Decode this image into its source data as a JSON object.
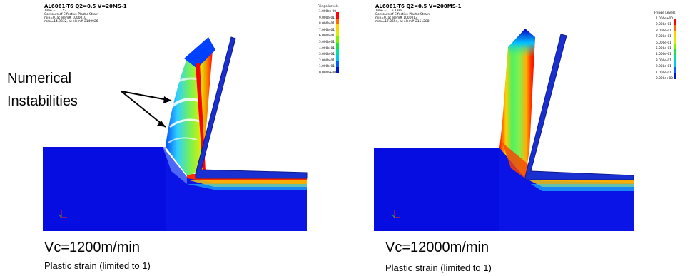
{
  "legend_colors": [
    "#ff0000",
    "#ff6a00",
    "#ffd000",
    "#d8f000",
    "#7ef000",
    "#20e040",
    "#00e0a0",
    "#00c8f0",
    "#0060ff",
    "#0014c8",
    "#0000b4"
  ],
  "left": {
    "title": "AL6061-T6 Q2=0.5 V=20MS-1",
    "info": [
      "Time =       52",
      "Contours of Effective Plastic Strain",
      "min=0, at elem# 1000010",
      "max=14.9332, at elem# 2149926"
    ],
    "legend_title": "Fringe Levels",
    "legend_labels": [
      "1.000e+00",
      "9.000e-01",
      "8.000e-01",
      "7.000e-01",
      "6.000e-01",
      "5.000e-01",
      "4.000e-01",
      "3.000e-01",
      "2.000e-01",
      "1.000e-01",
      "0.000e+00"
    ],
    "caption": "Vc=1200m/min",
    "subcaption": "Plastic strain (limited to 1)",
    "annotation": [
      "Numerical",
      "Instabilities"
    ]
  },
  "right": {
    "title": "AL6061-T6 Q2=0.5 V=200MS-1",
    "info": [
      "Time =     5.1999",
      "Contours of Effective Plastic Strain",
      "min=0, at elem# 1000013",
      "max=17.0654, at elem# 2151288"
    ],
    "legend_title": "Fringe Levels",
    "legend_labels": [
      "1.000e+00",
      "9.000e-01",
      "8.000e-01",
      "7.000e-01",
      "6.000e-01",
      "5.000e-01",
      "4.000e-01",
      "3.000e-01",
      "2.000e-01",
      "1.000e-01",
      "0.000e+00"
    ],
    "caption": "Vc=12000m/min",
    "subcaption": "Plastic strain (limited to 1)"
  }
}
